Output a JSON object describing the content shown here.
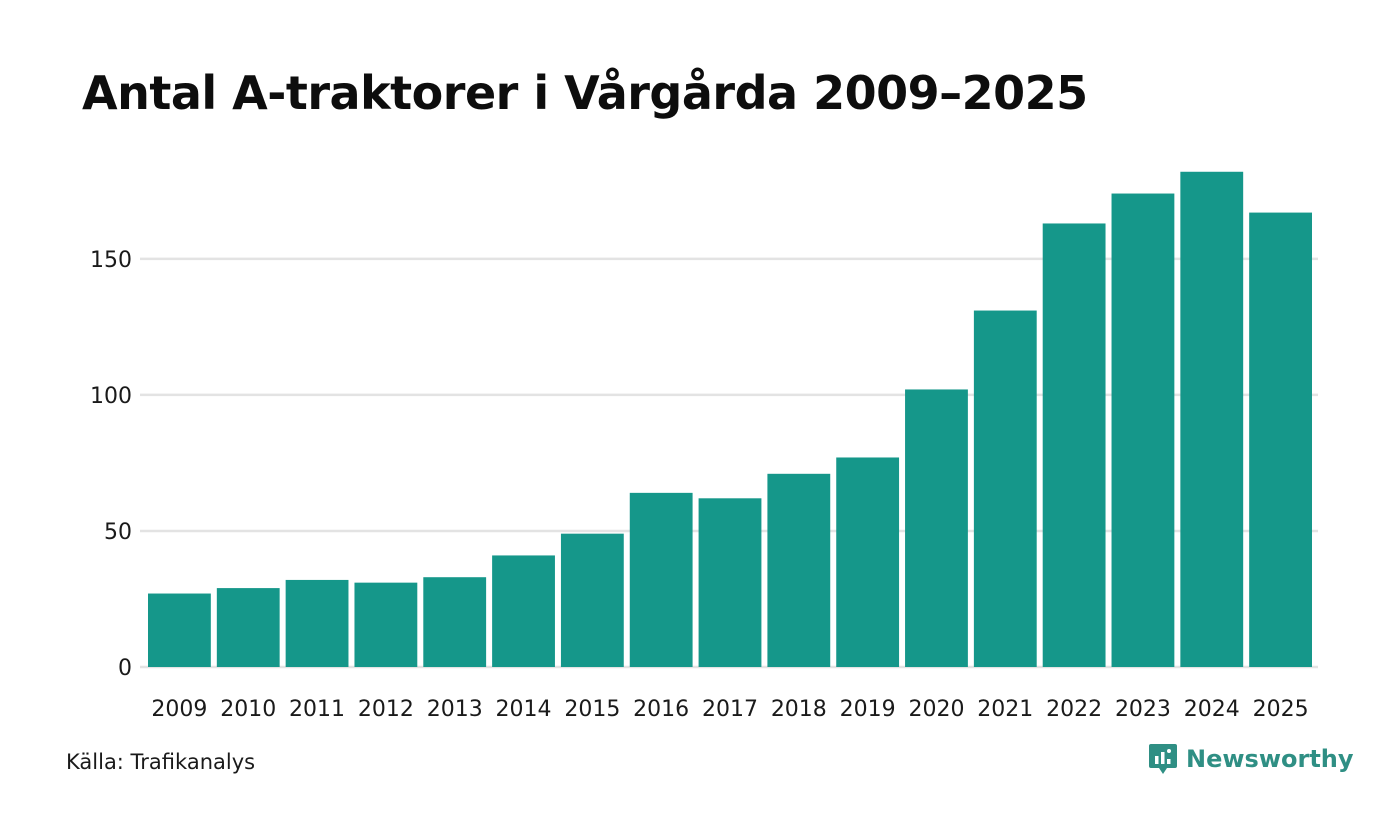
{
  "chart_data": {
    "type": "bar",
    "title": "Antal A-traktorer i Vårgårda 2009–2025",
    "xlabel": "",
    "ylabel": "",
    "categories": [
      "2009",
      "2010",
      "2011",
      "2012",
      "2013",
      "2014",
      "2015",
      "2016",
      "2017",
      "2018",
      "2019",
      "2020",
      "2021",
      "2022",
      "2023",
      "2024",
      "2025"
    ],
    "values": [
      27,
      29,
      32,
      31,
      33,
      41,
      49,
      64,
      62,
      71,
      77,
      102,
      131,
      163,
      174,
      182,
      167
    ],
    "ylim": [
      0,
      190
    ],
    "yticks": [
      0,
      50,
      100,
      150
    ],
    "grid": true,
    "legend": "none",
    "bar_color": "#15978a",
    "grid_color": "#e3e3e3"
  },
  "footer": {
    "source": "Källa: Trafikanalys",
    "brand": "Newsworthy",
    "brand_color": "#2f8f84"
  }
}
